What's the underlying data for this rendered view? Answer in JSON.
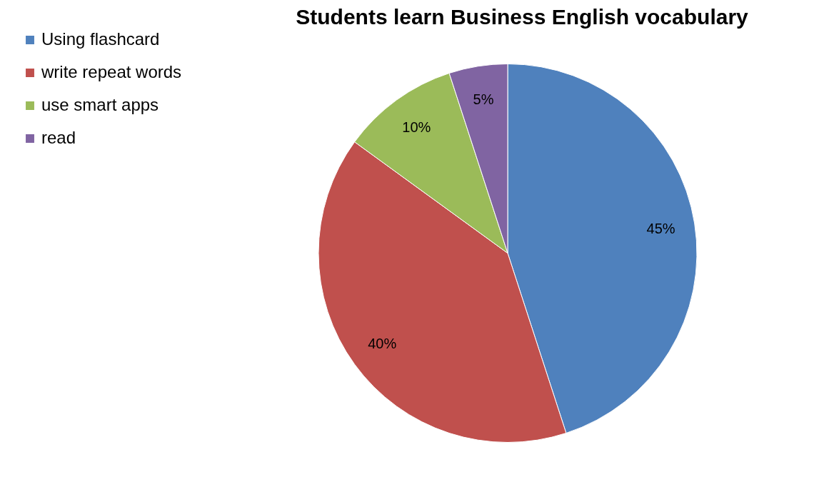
{
  "chart_data": {
    "type": "pie",
    "title": "Students learn Business English vocabulary",
    "categories": [
      "Using flashcard",
      "write repeat words",
      "use smart apps",
      "read"
    ],
    "values": [
      45,
      40,
      10,
      5
    ],
    "colors": [
      "#4f81bd",
      "#c0504d",
      "#9bbb59",
      "#8064a2"
    ],
    "value_labels": [
      "45%",
      "40%",
      "10%",
      "5%"
    ],
    "legend": "left"
  }
}
